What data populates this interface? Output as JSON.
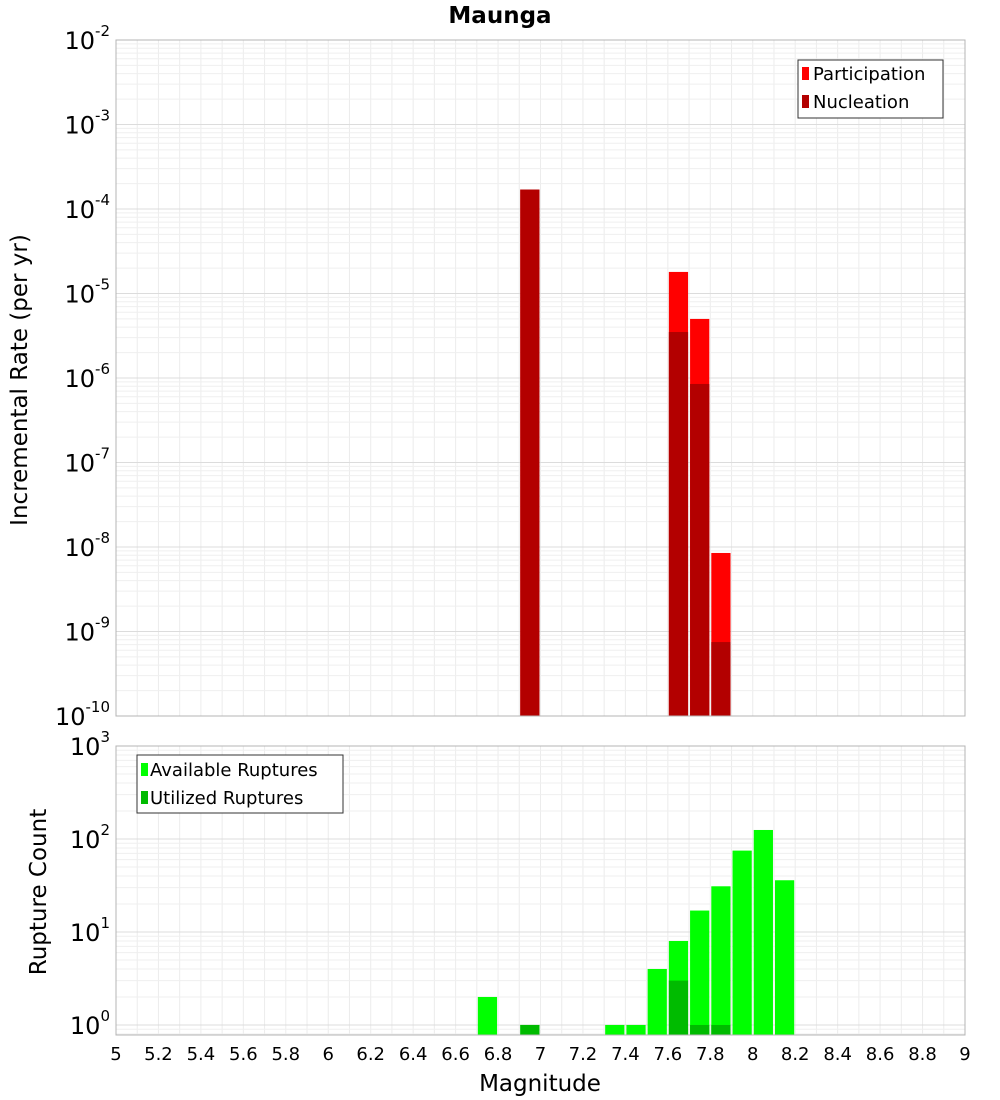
{
  "chart_data": {
    "title": "Maunga",
    "xlabel": "Magnitude",
    "xlim": [
      5,
      9
    ],
    "x_ticks": [
      "5",
      "5.2",
      "5.4",
      "5.6",
      "5.8",
      "6",
      "6.2",
      "6.4",
      "6.6",
      "6.8",
      "7",
      "7.2",
      "7.4",
      "7.6",
      "7.8",
      "8",
      "8.2",
      "8.4",
      "8.6",
      "8.8",
      "9"
    ],
    "bar_width": 0.1,
    "panels": [
      {
        "type": "bar",
        "scale": "log",
        "ylabel": "Incremental Rate (per yr)",
        "ylim": [
          1e-10,
          0.01
        ],
        "y_tick_exponents": [
          "-2",
          "-3",
          "-4",
          "-5",
          "-6",
          "-7",
          "-8",
          "-9",
          "-10"
        ],
        "legend": {
          "placement": "top-right"
        },
        "series": [
          {
            "name": "Participation",
            "color": "#ff0000",
            "x": [
              6.95,
              7.65,
              7.75,
              7.85
            ],
            "values": [
              0.00017,
              1.8e-05,
              5e-06,
              8.5e-09
            ]
          },
          {
            "name": "Nucleation",
            "color": "#b30000",
            "x": [
              6.95,
              7.65,
              7.75,
              7.85
            ],
            "values": [
              0.00017,
              3.5e-06,
              8.5e-07,
              7.5e-10
            ]
          }
        ]
      },
      {
        "type": "bar",
        "scale": "log",
        "ylabel": "Rupture Count",
        "ylim": [
          0.78,
          1000
        ],
        "y_tick_exponents": [
          "3",
          "2",
          "1",
          "0"
        ],
        "legend": {
          "placement": "top-left"
        },
        "series": [
          {
            "name": "Available Ruptures",
            "color": "#00ff00",
            "x": [
              6.75,
              6.95,
              7.35,
              7.45,
              7.55,
              7.65,
              7.75,
              7.85,
              7.95,
              8.05,
              8.15
            ],
            "values": [
              2,
              1,
              1,
              1,
              4,
              8,
              17,
              31,
              75,
              125,
              36
            ]
          },
          {
            "name": "Utilized Ruptures",
            "color": "#00bb00",
            "x": [
              6.95,
              7.65,
              7.75,
              7.85
            ],
            "values": [
              1,
              3,
              1,
              1
            ]
          }
        ]
      }
    ]
  }
}
